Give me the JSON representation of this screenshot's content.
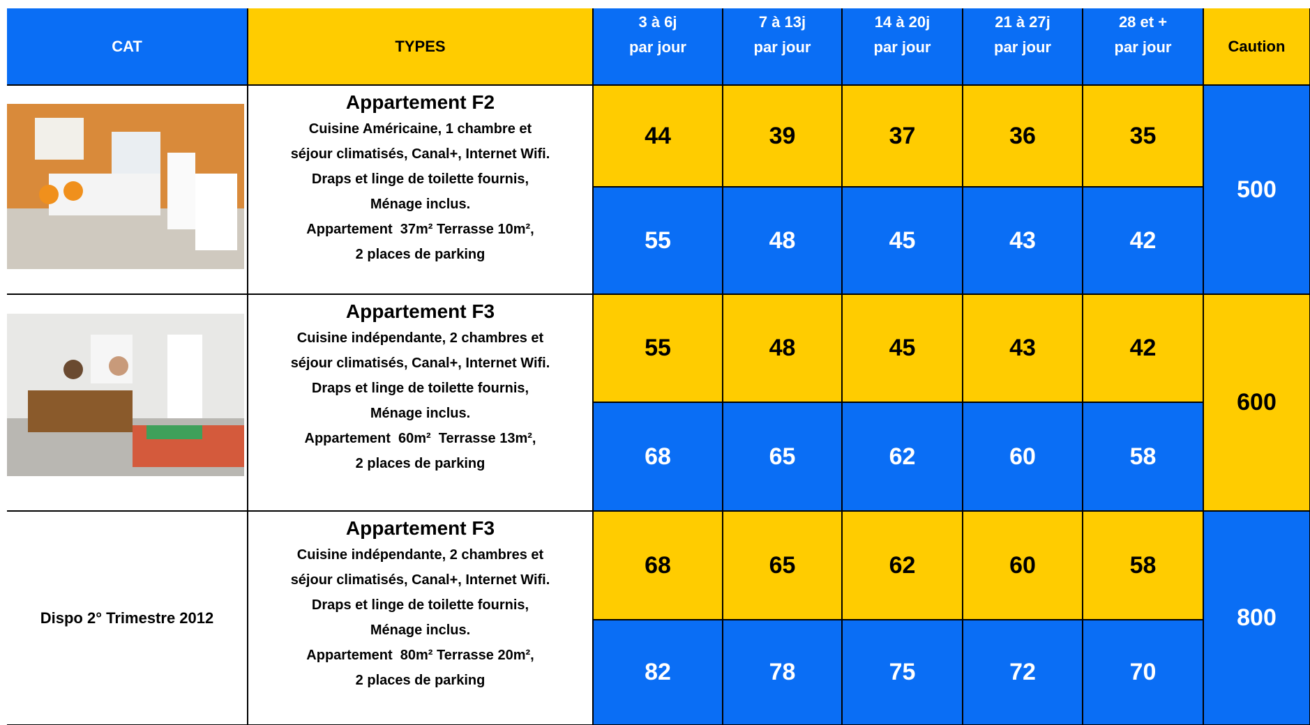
{
  "header": {
    "cat": "CAT",
    "types": "TYPES",
    "periods": [
      {
        "range": "3 à 6j",
        "unit": "par jour"
      },
      {
        "range": "7 à 13j",
        "unit": "par jour"
      },
      {
        "range": "14 à 20j",
        "unit": "par jour"
      },
      {
        "range": "21 à 27j",
        "unit": "par jour"
      },
      {
        "range": "28 et +",
        "unit": "par jour"
      }
    ],
    "caution": "Caution"
  },
  "rows": [
    {
      "title": "Appartement F2",
      "description": [
        "Cuisine Américaine, 1 chambre et",
        "séjour climatisés, Canal+, Internet Wifi.",
        "Draps et linge de toilette fournis,",
        "Ménage inclus.",
        "Appartement  37m² Terrasse 10m²,",
        "2 places de parking"
      ],
      "rates": [
        [
          44,
          39,
          37,
          36,
          35
        ],
        [
          55,
          48,
          45,
          43,
          42
        ]
      ],
      "caution": 500
    },
    {
      "title": "Appartement F3",
      "description": [
        "Cuisine indépendante, 2 chambres et",
        "séjour climatisés, Canal+, Internet Wifi.",
        "Draps et linge de toilette fournis,",
        "Ménage inclus.",
        "Appartement  60m²  Terrasse 13m²,",
        "2 places de parking"
      ],
      "rates": [
        [
          55,
          48,
          45,
          43,
          42
        ],
        [
          68,
          65,
          62,
          60,
          58
        ]
      ],
      "caution": 600
    },
    {
      "cat": "Dispo 2° Trimestre 2012",
      "title": "Appartement F3",
      "description": [
        "Cuisine indépendante, 2 chambres et",
        "séjour climatisés, Canal+, Internet Wifi.",
        "Draps et linge de toilette fournis,",
        "Ménage inclus.",
        "Appartement  80m² Terrasse 20m²,",
        "2 places de parking"
      ],
      "rates": [
        [
          68,
          65,
          62,
          60,
          58
        ],
        [
          82,
          78,
          75,
          72,
          70
        ]
      ],
      "caution": 800
    }
  ]
}
